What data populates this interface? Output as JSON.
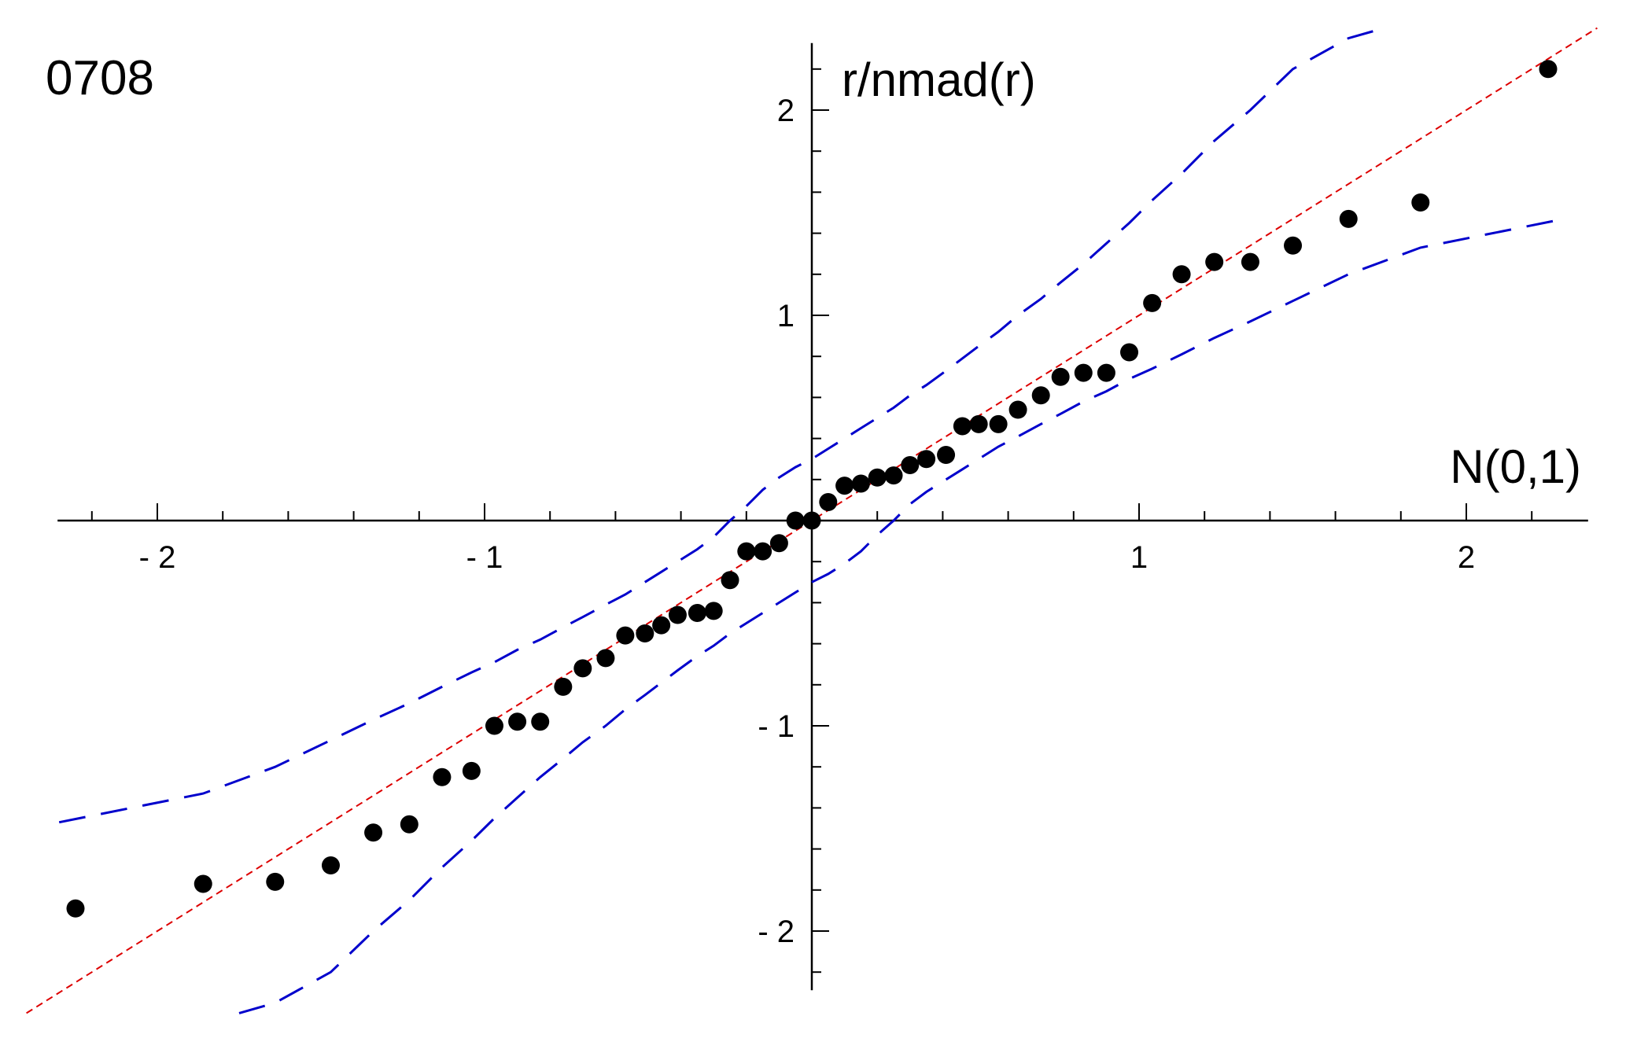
{
  "panel_label": "0708",
  "chart_data": {
    "type": "scatter",
    "title": "",
    "xlabel": "N(0,1)",
    "ylabel": "r/nmad(r)",
    "xlim": [
      -2.3,
      2.3
    ],
    "ylim": [
      -2.25,
      2.25
    ],
    "grid": false,
    "x_ticks": [
      {
        "value": -2,
        "label": "- 2"
      },
      {
        "value": -1,
        "label": "- 1"
      },
      {
        "value": 1,
        "label": "1"
      },
      {
        "value": 2,
        "label": "2"
      }
    ],
    "y_ticks": [
      {
        "value": 2,
        "label": "2"
      },
      {
        "value": 1,
        "label": "1"
      },
      {
        "value": -1,
        "label": "- 1"
      },
      {
        "value": -2,
        "label": "- 2"
      }
    ],
    "points": {
      "color": "#000000",
      "x": [
        -2.25,
        -1.86,
        -1.64,
        -1.47,
        -1.34,
        -1.23,
        -1.13,
        -1.04,
        -0.97,
        -0.9,
        -0.83,
        -0.76,
        -0.7,
        -0.63,
        -0.57,
        -0.51,
        -0.46,
        -0.41,
        -0.35,
        -0.3,
        -0.25,
        -0.2,
        -0.15,
        -0.1,
        -0.05,
        0.0,
        0.05,
        0.1,
        0.15,
        0.2,
        0.25,
        0.3,
        0.35,
        0.41,
        0.46,
        0.51,
        0.57,
        0.63,
        0.7,
        0.76,
        0.83,
        0.9,
        0.97,
        1.04,
        1.13,
        1.23,
        1.34,
        1.47,
        1.64,
        1.86,
        2.25
      ],
      "y": [
        -1.89,
        -1.77,
        -1.76,
        -1.68,
        -1.52,
        -1.48,
        -1.25,
        -1.22,
        -1.0,
        -0.98,
        -0.98,
        -0.81,
        -0.72,
        -0.67,
        -0.56,
        -0.55,
        -0.51,
        -0.46,
        -0.45,
        -0.44,
        -0.29,
        -0.15,
        -0.15,
        -0.11,
        0.0,
        0.0,
        0.09,
        0.17,
        0.18,
        0.21,
        0.22,
        0.27,
        0.3,
        0.32,
        0.46,
        0.47,
        0.47,
        0.54,
        0.61,
        0.7,
        0.72,
        0.72,
        0.82,
        1.06,
        1.2,
        1.26,
        1.26,
        1.34,
        1.47,
        1.55,
        2.2
      ]
    },
    "reference_line": {
      "color": "#dd0000",
      "x": [
        -2.4,
        2.4
      ],
      "y": [
        -2.4,
        2.4
      ]
    },
    "envelope": {
      "color": "#0000cc",
      "upper": {
        "x": [
          -2.3,
          -1.86,
          -1.64,
          -1.47,
          -1.34,
          -1.23,
          -1.13,
          -1.04,
          -0.97,
          -0.9,
          -0.83,
          -0.76,
          -0.7,
          -0.63,
          -0.57,
          -0.51,
          -0.46,
          -0.41,
          -0.35,
          -0.3,
          -0.25,
          -0.2,
          -0.15,
          -0.1,
          -0.05,
          0.0,
          0.05,
          0.1,
          0.15,
          0.2,
          0.25,
          0.3,
          0.35,
          0.41,
          0.46,
          0.51,
          0.57,
          0.63,
          0.7,
          0.76,
          0.83,
          0.9,
          0.97,
          1.04,
          1.13,
          1.23,
          1.34,
          1.47,
          1.64,
          1.75
        ],
        "y": [
          -1.47,
          -1.33,
          -1.2,
          -1.07,
          -0.97,
          -0.89,
          -0.81,
          -0.74,
          -0.69,
          -0.63,
          -0.58,
          -0.52,
          -0.47,
          -0.41,
          -0.36,
          -0.3,
          -0.25,
          -0.2,
          -0.14,
          -0.08,
          0.0,
          0.07,
          0.15,
          0.21,
          0.26,
          0.3,
          0.35,
          0.4,
          0.45,
          0.5,
          0.55,
          0.61,
          0.66,
          0.73,
          0.79,
          0.85,
          0.92,
          1.0,
          1.08,
          1.16,
          1.25,
          1.35,
          1.45,
          1.56,
          1.69,
          1.85,
          2.0,
          2.2,
          2.35,
          2.4
        ]
      },
      "lower": {
        "x": [
          -1.75,
          -1.64,
          -1.47,
          -1.34,
          -1.23,
          -1.13,
          -1.04,
          -0.97,
          -0.9,
          -0.83,
          -0.76,
          -0.7,
          -0.63,
          -0.57,
          -0.51,
          -0.46,
          -0.41,
          -0.35,
          -0.3,
          -0.25,
          -0.2,
          -0.15,
          -0.1,
          -0.05,
          0.0,
          0.05,
          0.1,
          0.15,
          0.2,
          0.25,
          0.3,
          0.35,
          0.41,
          0.46,
          0.51,
          0.57,
          0.63,
          0.7,
          0.76,
          0.83,
          0.9,
          0.97,
          1.04,
          1.13,
          1.23,
          1.34,
          1.47,
          1.64,
          1.86,
          2.3
        ],
        "y": [
          -2.4,
          -2.35,
          -2.2,
          -2.0,
          -1.85,
          -1.69,
          -1.56,
          -1.45,
          -1.35,
          -1.25,
          -1.16,
          -1.08,
          -1.0,
          -0.92,
          -0.85,
          -0.79,
          -0.73,
          -0.66,
          -0.61,
          -0.55,
          -0.5,
          -0.45,
          -0.4,
          -0.35,
          -0.3,
          -0.26,
          -0.21,
          -0.15,
          -0.07,
          0.0,
          0.08,
          0.14,
          0.2,
          0.25,
          0.3,
          0.36,
          0.41,
          0.47,
          0.52,
          0.58,
          0.63,
          0.69,
          0.74,
          0.81,
          0.89,
          0.97,
          1.07,
          1.2,
          1.33,
          1.47
        ]
      }
    }
  }
}
